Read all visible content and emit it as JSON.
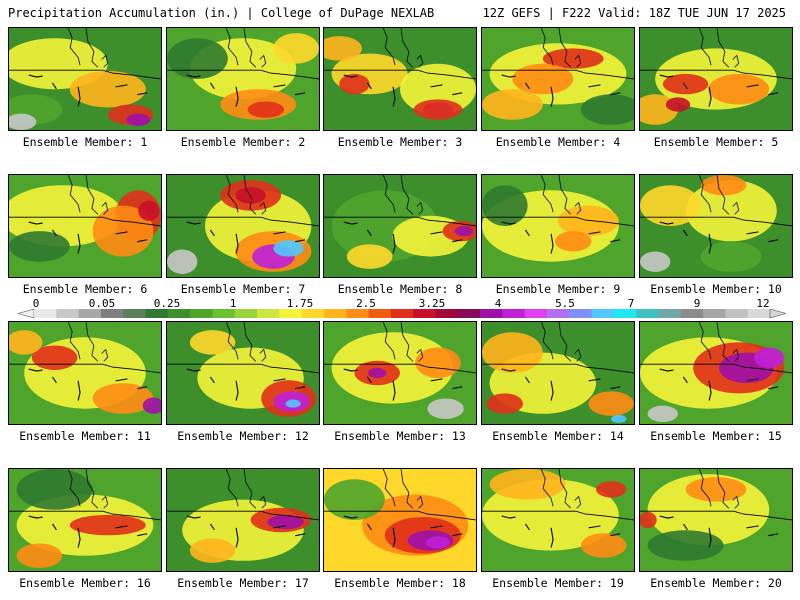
{
  "header": {
    "left": "Precipitation Accumulation (in.) | College of DuPage NEXLAB",
    "right": "12Z GEFS | F222 Valid: 18Z TUE JUN 17 2025"
  },
  "colorbar": {
    "labels": [
      "0",
      "0.05",
      "0.25",
      "1",
      "1.75",
      "2.5",
      "3.25",
      "4",
      "5.5",
      "7",
      "9",
      "12"
    ],
    "colors": [
      "#e8e8e8",
      "#c8c8c8",
      "#a8a8a8",
      "#7f7f7f",
      "#5e7f5e",
      "#2f7a30",
      "#3c8f2a",
      "#4fa52c",
      "#6cbf2e",
      "#9bd43a",
      "#cfe640",
      "#f4f43a",
      "#ffd82a",
      "#ffb51c",
      "#ff8c14",
      "#f25c10",
      "#e0301a",
      "#c8102a",
      "#a0083a",
      "#8a0a5a",
      "#a010a8",
      "#c020d8",
      "#e040f0",
      "#b070f0",
      "#8090f8",
      "#50c8ff",
      "#20e8f0",
      "#40c0c0",
      "#70a8a8",
      "#8c8c8c",
      "#a6a6a6",
      "#c0c0c0",
      "#d8d8d8"
    ]
  },
  "panels": [
    {
      "label": "Ensemble Member: 1",
      "bg": "#3c8f2a",
      "blobs": [
        [
          "#f4f43a",
          0.3,
          0.35,
          0.35,
          0.25
        ],
        [
          "#ffb51c",
          0.65,
          0.6,
          0.25,
          0.18
        ],
        [
          "#e0301a",
          0.8,
          0.85,
          0.15,
          0.1
        ],
        [
          "#a010a8",
          0.85,
          0.9,
          0.08,
          0.06
        ],
        [
          "#4fa52c",
          0.15,
          0.8,
          0.2,
          0.15
        ],
        [
          "#c8c8c8",
          0.08,
          0.92,
          0.1,
          0.08
        ]
      ]
    },
    {
      "label": "Ensemble Member: 2",
      "bg": "#4fa52c",
      "blobs": [
        [
          "#f4f43a",
          0.5,
          0.4,
          0.35,
          0.3
        ],
        [
          "#ff8c14",
          0.6,
          0.75,
          0.25,
          0.15
        ],
        [
          "#e0301a",
          0.65,
          0.8,
          0.12,
          0.08
        ],
        [
          "#2f7a30",
          0.2,
          0.3,
          0.2,
          0.2
        ],
        [
          "#ffd82a",
          0.85,
          0.2,
          0.15,
          0.15
        ]
      ]
    },
    {
      "label": "Ensemble Member: 3",
      "bg": "#3c8f2a",
      "blobs": [
        [
          "#ffd82a",
          0.3,
          0.45,
          0.25,
          0.2
        ],
        [
          "#e0301a",
          0.2,
          0.55,
          0.1,
          0.1
        ],
        [
          "#f4f43a",
          0.75,
          0.6,
          0.25,
          0.25
        ],
        [
          "#a010a8",
          0.75,
          0.8,
          0.1,
          0.07
        ],
        [
          "#e0301a",
          0.75,
          0.8,
          0.16,
          0.1
        ],
        [
          "#ffb51c",
          0.1,
          0.2,
          0.15,
          0.12
        ]
      ]
    },
    {
      "label": "Ensemble Member: 4",
      "bg": "#4fa52c",
      "blobs": [
        [
          "#f4f43a",
          0.5,
          0.45,
          0.45,
          0.3
        ],
        [
          "#e0301a",
          0.6,
          0.3,
          0.2,
          0.1
        ],
        [
          "#ff8c14",
          0.4,
          0.5,
          0.2,
          0.15
        ],
        [
          "#ffb51c",
          0.2,
          0.75,
          0.2,
          0.15
        ],
        [
          "#2f7a30",
          0.85,
          0.8,
          0.2,
          0.15
        ]
      ]
    },
    {
      "label": "Ensemble Member: 5",
      "bg": "#3c8f2a",
      "blobs": [
        [
          "#f4f43a",
          0.5,
          0.5,
          0.4,
          0.3
        ],
        [
          "#e0301a",
          0.3,
          0.55,
          0.15,
          0.1
        ],
        [
          "#ff8c14",
          0.65,
          0.6,
          0.2,
          0.15
        ],
        [
          "#ffb51c",
          0.1,
          0.8,
          0.15,
          0.15
        ],
        [
          "#c8102a",
          0.25,
          0.75,
          0.08,
          0.07
        ]
      ]
    },
    {
      "label": "Ensemble Member: 6",
      "bg": "#4fa52c",
      "blobs": [
        [
          "#f4f43a",
          0.35,
          0.4,
          0.4,
          0.3
        ],
        [
          "#e0301a",
          0.85,
          0.4,
          0.15,
          0.25
        ],
        [
          "#ff8c14",
          0.75,
          0.55,
          0.2,
          0.25
        ],
        [
          "#c8102a",
          0.92,
          0.35,
          0.07,
          0.1
        ],
        [
          "#2f7a30",
          0.2,
          0.7,
          0.2,
          0.15
        ]
      ]
    },
    {
      "label": "Ensemble Member: 7",
      "bg": "#3c8f2a",
      "blobs": [
        [
          "#f4f43a",
          0.6,
          0.5,
          0.35,
          0.35
        ],
        [
          "#e0301a",
          0.55,
          0.2,
          0.2,
          0.15
        ],
        [
          "#c8102a",
          0.55,
          0.2,
          0.1,
          0.08
        ],
        [
          "#ff8c14",
          0.7,
          0.75,
          0.25,
          0.2
        ],
        [
          "#c020d8",
          0.7,
          0.8,
          0.14,
          0.12
        ],
        [
          "#50c8ff",
          0.8,
          0.72,
          0.1,
          0.08
        ],
        [
          "#c8c8c8",
          0.1,
          0.85,
          0.1,
          0.12
        ]
      ]
    },
    {
      "label": "Ensemble Member: 8",
      "bg": "#3c8f2a",
      "blobs": [
        [
          "#4fa52c",
          0.4,
          0.5,
          0.35,
          0.35
        ],
        [
          "#f4f43a",
          0.7,
          0.6,
          0.25,
          0.2
        ],
        [
          "#e0301a",
          0.9,
          0.55,
          0.12,
          0.1
        ],
        [
          "#a010a8",
          0.92,
          0.55,
          0.06,
          0.05
        ],
        [
          "#ffd82a",
          0.3,
          0.8,
          0.15,
          0.12
        ]
      ]
    },
    {
      "label": "Ensemble Member: 9",
      "bg": "#4fa52c",
      "blobs": [
        [
          "#f4f43a",
          0.45,
          0.5,
          0.45,
          0.35
        ],
        [
          "#ffb51c",
          0.7,
          0.45,
          0.2,
          0.15
        ],
        [
          "#ff8c14",
          0.6,
          0.65,
          0.12,
          0.1
        ],
        [
          "#2f7a30",
          0.15,
          0.3,
          0.15,
          0.2
        ]
      ]
    },
    {
      "label": "Ensemble Member: 10",
      "bg": "#3c8f2a",
      "blobs": [
        [
          "#f4f43a",
          0.6,
          0.35,
          0.3,
          0.3
        ],
        [
          "#ff8c14",
          0.55,
          0.1,
          0.15,
          0.1
        ],
        [
          "#ffd82a",
          0.2,
          0.3,
          0.2,
          0.2
        ],
        [
          "#c8c8c8",
          0.1,
          0.85,
          0.1,
          0.1
        ],
        [
          "#4fa52c",
          0.6,
          0.8,
          0.2,
          0.15
        ]
      ]
    },
    {
      "label": "Ensemble Member: 11",
      "bg": "#4fa52c",
      "blobs": [
        [
          "#f4f43a",
          0.5,
          0.5,
          0.4,
          0.35
        ],
        [
          "#e0301a",
          0.3,
          0.35,
          0.15,
          0.12
        ],
        [
          "#ff8c14",
          0.75,
          0.75,
          0.2,
          0.15
        ],
        [
          "#a010a8",
          0.95,
          0.82,
          0.07,
          0.08
        ],
        [
          "#ffb51c",
          0.1,
          0.2,
          0.12,
          0.12
        ]
      ]
    },
    {
      "label": "Ensemble Member: 12",
      "bg": "#3c8f2a",
      "blobs": [
        [
          "#f4f43a",
          0.55,
          0.55,
          0.35,
          0.3
        ],
        [
          "#e0301a",
          0.8,
          0.75,
          0.18,
          0.18
        ],
        [
          "#c020d8",
          0.82,
          0.78,
          0.12,
          0.1
        ],
        [
          "#50c8ff",
          0.83,
          0.8,
          0.05,
          0.04
        ],
        [
          "#ffd82a",
          0.3,
          0.2,
          0.15,
          0.12
        ]
      ]
    },
    {
      "label": "Ensemble Member: 13",
      "bg": "#4fa52c",
      "blobs": [
        [
          "#f4f43a",
          0.45,
          0.45,
          0.4,
          0.35
        ],
        [
          "#e0301a",
          0.35,
          0.5,
          0.15,
          0.12
        ],
        [
          "#a010a8",
          0.35,
          0.5,
          0.06,
          0.05
        ],
        [
          "#ff8c14",
          0.75,
          0.4,
          0.15,
          0.15
        ],
        [
          "#c8c8c8",
          0.8,
          0.85,
          0.12,
          0.1
        ]
      ]
    },
    {
      "label": "Ensemble Member: 14",
      "bg": "#3c8f2a",
      "blobs": [
        [
          "#f4f43a",
          0.4,
          0.6,
          0.35,
          0.3
        ],
        [
          "#ffb51c",
          0.2,
          0.3,
          0.2,
          0.2
        ],
        [
          "#e0301a",
          0.15,
          0.8,
          0.12,
          0.1
        ],
        [
          "#ff8c14",
          0.85,
          0.8,
          0.15,
          0.12
        ],
        [
          "#50c8ff",
          0.9,
          0.95,
          0.05,
          0.04
        ]
      ]
    },
    {
      "label": "Ensemble Member: 15",
      "bg": "#4fa52c",
      "blobs": [
        [
          "#f4f43a",
          0.45,
          0.5,
          0.45,
          0.35
        ],
        [
          "#e0301a",
          0.65,
          0.45,
          0.3,
          0.25
        ],
        [
          "#a010a8",
          0.7,
          0.45,
          0.18,
          0.15
        ],
        [
          "#c020d8",
          0.85,
          0.35,
          0.1,
          0.1
        ],
        [
          "#c8c8c8",
          0.15,
          0.9,
          0.1,
          0.08
        ]
      ]
    },
    {
      "label": "Ensemble Member: 16",
      "bg": "#4fa52c",
      "blobs": [
        [
          "#f4f43a",
          0.5,
          0.55,
          0.45,
          0.3
        ],
        [
          "#e0301a",
          0.65,
          0.55,
          0.25,
          0.1
        ],
        [
          "#ff8c14",
          0.2,
          0.85,
          0.15,
          0.12
        ],
        [
          "#2f7a30",
          0.3,
          0.2,
          0.25,
          0.2
        ]
      ]
    },
    {
      "label": "Ensemble Member: 17",
      "bg": "#3c8f2a",
      "blobs": [
        [
          "#f4f43a",
          0.5,
          0.6,
          0.4,
          0.3
        ],
        [
          "#e0301a",
          0.75,
          0.5,
          0.2,
          0.12
        ],
        [
          "#a010a8",
          0.78,
          0.52,
          0.12,
          0.07
        ],
        [
          "#ffb51c",
          0.3,
          0.8,
          0.15,
          0.12
        ]
      ]
    },
    {
      "label": "Ensemble Member: 18",
      "bg": "#ffd82a",
      "blobs": [
        [
          "#ff8c14",
          0.6,
          0.55,
          0.35,
          0.3
        ],
        [
          "#e0301a",
          0.65,
          0.65,
          0.25,
          0.18
        ],
        [
          "#a010a8",
          0.7,
          0.7,
          0.15,
          0.1
        ],
        [
          "#c020d8",
          0.75,
          0.72,
          0.08,
          0.06
        ],
        [
          "#4fa52c",
          0.2,
          0.3,
          0.2,
          0.2
        ]
      ]
    },
    {
      "label": "Ensemble Member: 19",
      "bg": "#4fa52c",
      "blobs": [
        [
          "#f4f43a",
          0.45,
          0.45,
          0.45,
          0.35
        ],
        [
          "#ffb51c",
          0.3,
          0.15,
          0.25,
          0.15
        ],
        [
          "#e0301a",
          0.85,
          0.2,
          0.1,
          0.08
        ],
        [
          "#ff8c14",
          0.8,
          0.75,
          0.15,
          0.12
        ]
      ]
    },
    {
      "label": "Ensemble Member: 20",
      "bg": "#4fa52c",
      "blobs": [
        [
          "#f4f43a",
          0.45,
          0.4,
          0.4,
          0.35
        ],
        [
          "#ff8c14",
          0.5,
          0.2,
          0.2,
          0.12
        ],
        [
          "#2f7a30",
          0.3,
          0.75,
          0.25,
          0.15
        ],
        [
          "#e0301a",
          0.05,
          0.5,
          0.06,
          0.08
        ]
      ]
    }
  ]
}
